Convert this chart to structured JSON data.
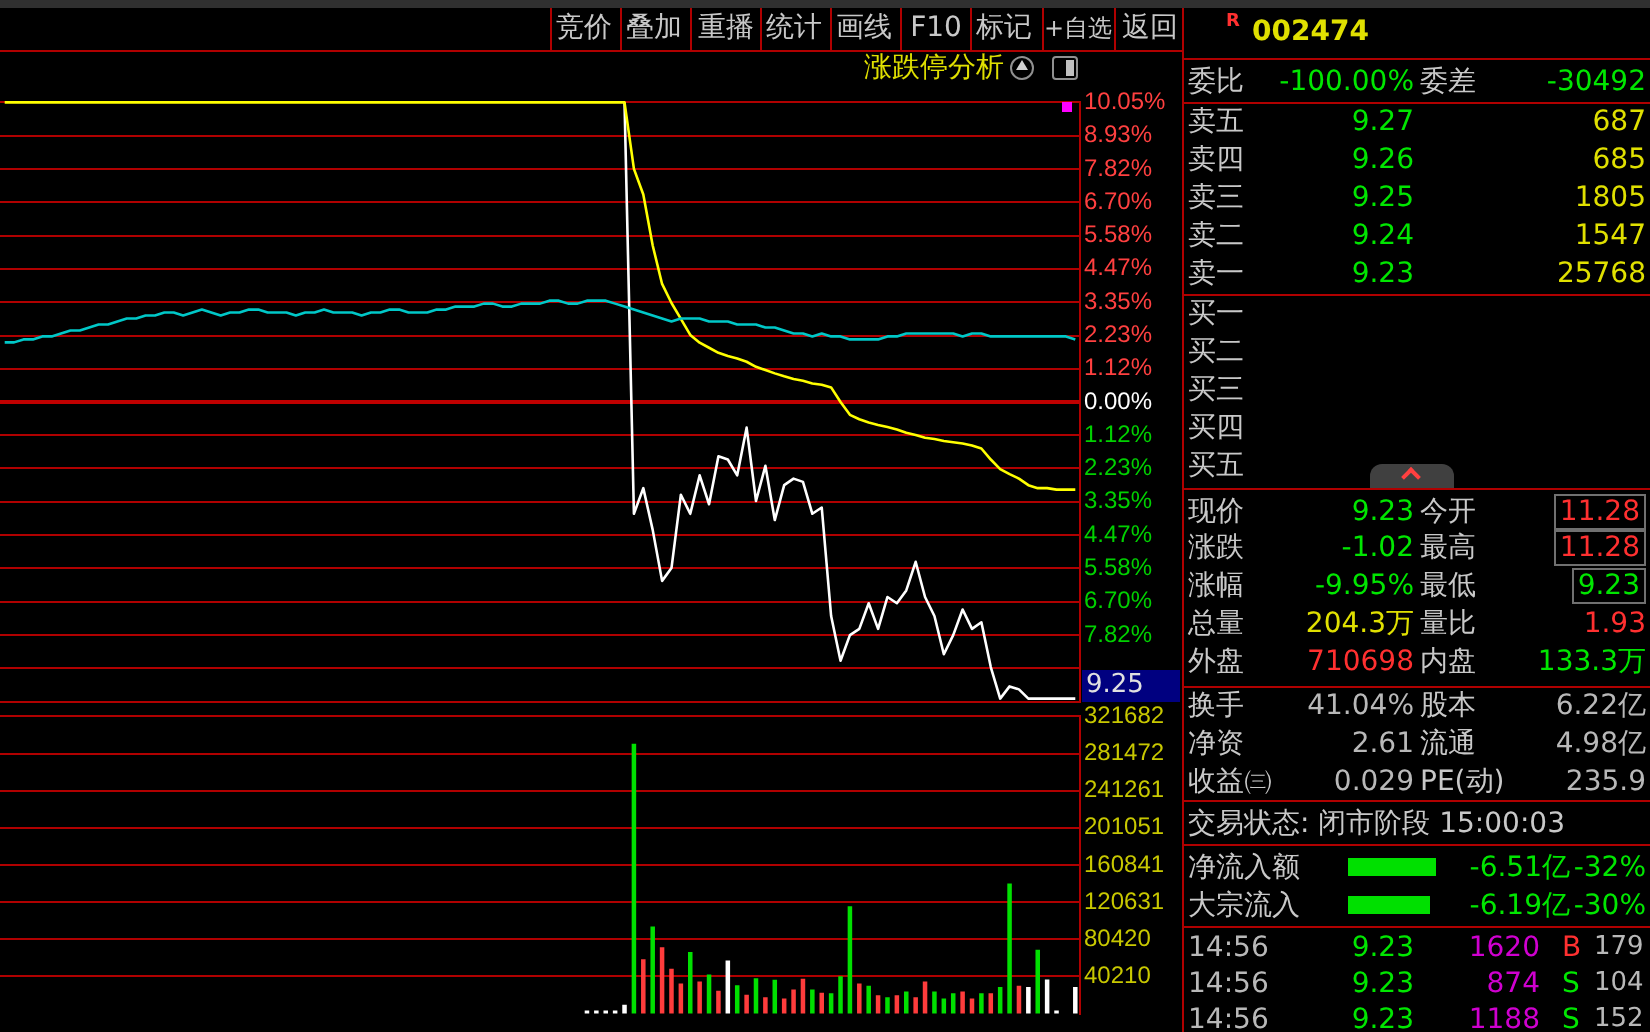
{
  "chart_data": [
    {
      "type": "line",
      "categories": [
        null,
        null,
        null,
        null,
        null,
        null,
        null,
        null,
        null,
        null,
        null,
        null,
        null,
        null,
        null,
        null,
        null,
        null,
        null,
        null,
        null,
        null,
        null,
        null,
        null,
        null,
        null,
        null,
        null,
        null,
        null,
        null,
        null,
        null,
        null,
        null,
        null,
        null,
        null,
        null,
        null,
        null,
        null,
        null,
        null,
        null,
        null,
        null,
        null,
        null,
        null,
        null,
        null,
        null,
        null,
        null,
        null,
        null,
        null,
        null,
        null,
        null,
        null,
        null,
        null,
        null,
        null,
        null,
        null,
        null,
        null,
        null,
        null,
        null,
        null,
        null,
        null,
        null,
        null,
        null,
        null,
        null,
        null,
        null,
        null,
        null,
        null,
        null,
        null,
        null,
        null,
        null,
        null,
        null,
        null,
        null,
        null,
        null,
        null,
        null,
        null,
        null,
        null,
        null,
        null,
        null,
        null,
        null,
        null,
        null,
        null,
        null,
        null,
        null,
        null
      ],
      "ylim": [
        -10.05,
        10.05
      ],
      "yticks": [
        {
          "value": 10.05,
          "label": "10.05%"
        },
        {
          "value": 8.93,
          "label": "8.93%"
        },
        {
          "value": 7.82,
          "label": "7.82%"
        },
        {
          "value": 6.7,
          "label": "6.70%"
        },
        {
          "value": 5.58,
          "label": "5.58%"
        },
        {
          "value": 4.47,
          "label": "4.47%"
        },
        {
          "value": 3.35,
          "label": "3.35%"
        },
        {
          "value": 2.23,
          "label": "2.23%"
        },
        {
          "value": 1.12,
          "label": "1.12%"
        },
        {
          "value": 0,
          "label": "0.00%"
        },
        {
          "value": -1.12,
          "label": "1.12%"
        },
        {
          "value": -2.23,
          "label": "2.23%"
        },
        {
          "value": -3.35,
          "label": "3.35%"
        },
        {
          "value": -4.47,
          "label": "4.47%"
        },
        {
          "value": -5.58,
          "label": "5.58%"
        },
        {
          "value": -6.7,
          "label": "6.70%"
        },
        {
          "value": -7.82,
          "label": "7.82%"
        },
        {
          "value": -8.93,
          "label": null
        },
        {
          "value": -10.05,
          "label": null
        }
      ],
      "grid": "y",
      "tick_labels": "y",
      "series": [
        {
          "color": "#00c8c8",
          "values": [
            2.0,
            2.0,
            2.1,
            2.1,
            2.2,
            2.2,
            2.3,
            2.4,
            2.4,
            2.5,
            2.6,
            2.6,
            2.7,
            2.8,
            2.8,
            2.9,
            2.9,
            3.0,
            3.0,
            2.9,
            3.0,
            3.1,
            3.0,
            2.9,
            3.0,
            3.0,
            3.1,
            3.1,
            3.0,
            3.0,
            3.0,
            2.9,
            3.0,
            3.0,
            3.1,
            3.0,
            3.0,
            3.0,
            2.9,
            3.0,
            3.0,
            3.1,
            3.1,
            3.0,
            3.0,
            3.0,
            3.1,
            3.1,
            3.2,
            3.2,
            3.2,
            3.3,
            3.3,
            3.2,
            3.2,
            3.3,
            3.3,
            3.3,
            3.4,
            3.4,
            3.3,
            3.3,
            3.4,
            3.4,
            3.4,
            3.3,
            3.2,
            3.1,
            3.0,
            2.9,
            2.8,
            2.7,
            2.8,
            2.8,
            2.8,
            2.7,
            2.7,
            2.7,
            2.6,
            2.6,
            2.6,
            2.5,
            2.5,
            2.4,
            2.3,
            2.3,
            2.2,
            2.3,
            2.2,
            2.2,
            2.1,
            2.1,
            2.1,
            2.1,
            2.2,
            2.2,
            2.3,
            2.3,
            2.3,
            2.3,
            2.3,
            2.3,
            2.2,
            2.3,
            2.3,
            2.2,
            2.2,
            2.2,
            2.2,
            2.2,
            2.2,
            2.2,
            2.2,
            2.2,
            2.1
          ]
        },
        {
          "color": "#ffff00",
          "values": [
            10.05,
            10.05,
            10.05,
            10.05,
            10.05,
            10.05,
            10.05,
            10.05,
            10.05,
            10.05,
            10.05,
            10.05,
            10.05,
            10.05,
            10.05,
            10.05,
            10.05,
            10.05,
            10.05,
            10.05,
            10.05,
            10.05,
            10.05,
            10.05,
            10.05,
            10.05,
            10.05,
            10.05,
            10.05,
            10.05,
            10.05,
            10.05,
            10.05,
            10.05,
            10.05,
            10.05,
            10.05,
            10.05,
            10.05,
            10.05,
            10.05,
            10.05,
            10.05,
            10.05,
            10.05,
            10.05,
            10.05,
            10.05,
            10.05,
            10.05,
            10.05,
            10.05,
            10.05,
            10.05,
            10.05,
            10.05,
            10.05,
            10.05,
            10.05,
            10.05,
            10.05,
            10.05,
            10.05,
            10.05,
            10.05,
            10.05,
            10.05,
            7.82,
            6.96,
            5.25,
            3.96,
            3.32,
            2.79,
            2.25,
            1.99,
            1.82,
            1.65,
            1.54,
            1.46,
            1.35,
            1.18,
            1.07,
            0.96,
            0.86,
            0.77,
            0.71,
            0.62,
            0.58,
            0.49,
            0,
            -0.43,
            -0.58,
            -0.69,
            -0.77,
            -0.84,
            -0.92,
            -1.03,
            -1.11,
            -1.2,
            -1.24,
            -1.31,
            -1.35,
            -1.39,
            -1.46,
            -1.56,
            -1.93,
            -2.25,
            -2.42,
            -2.57,
            -2.79,
            -2.89,
            -2.89,
            -2.94,
            -2.94,
            -2.94
          ]
        },
        {
          "color": "#ffffff",
          "values": [
            null,
            null,
            null,
            null,
            null,
            null,
            null,
            null,
            null,
            null,
            null,
            null,
            null,
            null,
            null,
            null,
            null,
            null,
            null,
            null,
            null,
            null,
            null,
            null,
            null,
            null,
            null,
            null,
            null,
            null,
            null,
            null,
            null,
            null,
            null,
            null,
            null,
            null,
            null,
            null,
            null,
            null,
            null,
            null,
            null,
            null,
            null,
            null,
            null,
            null,
            null,
            null,
            null,
            null,
            null,
            null,
            null,
            null,
            null,
            null,
            null,
            null,
            null,
            null,
            null,
            null,
            10.05,
            -3.75,
            -2.89,
            -4.29,
            -6.0,
            -5.57,
            -3.11,
            -3.75,
            -2.46,
            -3.43,
            -1.82,
            -1.93,
            -2.46,
            -0.86,
            -3.32,
            -2.14,
            -3.96,
            -2.79,
            -2.57,
            -2.68,
            -3.75,
            -3.54,
            -7.18,
            -8.68,
            -7.82,
            -7.61,
            -6.75,
            -7.61,
            -6.54,
            -6.75,
            -6.32,
            -5.36,
            -6.54,
            -7.18,
            -8.46,
            -7.82,
            -6.96,
            -7.61,
            -7.39,
            -8.89,
            -9.95,
            -9.54,
            -9.64,
            -9.95,
            -9.95,
            -9.95,
            -9.95,
            -9.95,
            -9.95
          ]
        }
      ],
      "ref_lines": [
        {
          "axis": "y",
          "value": 0,
          "color": "#c00000"
        }
      ],
      "annotations": [
        "9.25",
        "竞价",
        "叠加",
        "重播",
        "统计",
        "画线",
        "F10",
        "标记",
        "+自选",
        "返回",
        "涨跌停分析",
        "R",
        "002474",
        "委比",
        "-100.00%",
        "委差",
        "-30492",
        "卖五",
        "9.27",
        "687",
        "卖四",
        "9.26",
        "685",
        "卖三",
        "9.25",
        "1805",
        "卖二",
        "9.24",
        "1547",
        "卖一",
        "9.23",
        "25768",
        "买一",
        "买二",
        "买三",
        "买四",
        "买五",
        "现价",
        "9.23",
        "今开",
        "11.28",
        "涨跌",
        "-1.02",
        "最高",
        "11.28",
        "涨幅",
        "-9.95%",
        "最低",
        "9.23",
        "总量",
        "204.3万",
        "量比",
        "1.93",
        "外盘",
        "710698",
        "内盘",
        "133.3万",
        "换手",
        "41.04%",
        "股本",
        "6.22亿",
        "净资",
        "2.61",
        "流通",
        "4.98亿",
        "收益㈢",
        "0.029",
        "PE(动)",
        "235.9",
        "交易状态: 闭市阶段 15:00:03",
        "净流入额",
        "-6.51亿",
        "-32%",
        "大宗流入",
        "-6.19亿",
        "-30%",
        "14:56",
        "9.23",
        "1620",
        "B",
        "179",
        "14:56",
        "9.23",
        "874",
        "S",
        "104",
        "14:56",
        "9.23",
        "1188",
        "S",
        "152"
      ]
    },
    {
      "type": "bar",
      "categories": [
        null,
        null,
        null,
        null,
        null,
        null,
        null,
        null,
        null,
        null,
        null,
        null,
        null,
        null,
        null,
        null,
        null,
        null,
        null,
        null,
        null,
        null,
        null,
        null,
        null,
        null,
        null,
        null,
        null,
        null,
        null,
        null,
        null,
        null,
        null,
        null,
        null,
        null,
        null,
        null,
        null,
        null,
        null,
        null,
        null,
        null,
        null,
        null,
        null,
        null,
        null,
        null,
        null,
        null,
        null,
        null,
        null,
        null,
        null,
        null,
        null,
        null,
        null,
        null,
        null,
        null,
        null,
        null,
        null,
        null,
        null,
        null,
        null,
        null,
        null,
        null,
        null,
        null,
        null,
        null,
        null,
        null,
        null,
        null,
        null,
        null,
        null,
        null,
        null,
        null,
        null,
        null,
        null,
        null,
        null,
        null,
        null,
        null,
        null,
        null,
        null,
        null,
        null,
        null,
        null,
        null,
        null,
        null,
        null,
        null,
        null,
        null,
        null,
        null,
        null
      ],
      "ylim": [
        0,
        321682
      ],
      "yticks": [
        40210,
        80420,
        120631,
        160841,
        201051,
        241261,
        281472,
        321682
      ],
      "grid": "y",
      "tick_labels": "y",
      "values": [
        null,
        null,
        null,
        null,
        null,
        null,
        null,
        null,
        null,
        null,
        null,
        null,
        null,
        null,
        null,
        null,
        null,
        null,
        null,
        null,
        null,
        null,
        null,
        null,
        null,
        null,
        null,
        null,
        null,
        null,
        null,
        null,
        null,
        null,
        null,
        null,
        null,
        null,
        null,
        null,
        null,
        null,
        null,
        null,
        null,
        null,
        null,
        null,
        null,
        null,
        null,
        null,
        null,
        null,
        null,
        null,
        null,
        null,
        null,
        null,
        null,
        null,
        2700,
        2700,
        2700,
        2700,
        8900,
        291500,
        58000,
        93500,
        71000,
        47800,
        32000,
        66000,
        34000,
        41600,
        23900,
        56700,
        30000,
        19800,
        37500,
        17000,
        36000,
        15700,
        25300,
        36900,
        25300,
        21800,
        21200,
        39600,
        115400,
        32000,
        29400,
        19100,
        17000,
        19100,
        23200,
        17000,
        34000,
        23200,
        15700,
        21200,
        23200,
        15700,
        21200,
        21200,
        28000,
        140000,
        29400,
        28000,
        68300,
        36200,
        2700,
        null,
        28000
      ],
      "colors": [
        null,
        null,
        null,
        null,
        null,
        null,
        null,
        null,
        null,
        null,
        null,
        null,
        null,
        null,
        null,
        null,
        null,
        null,
        null,
        null,
        null,
        null,
        null,
        null,
        null,
        null,
        null,
        null,
        null,
        null,
        null,
        null,
        null,
        null,
        null,
        null,
        null,
        null,
        null,
        null,
        null,
        null,
        null,
        null,
        null,
        null,
        null,
        null,
        null,
        null,
        null,
        null,
        null,
        null,
        null,
        null,
        null,
        null,
        null,
        null,
        null,
        null,
        "#ffffff",
        "#ffffff",
        "#ffffff",
        "#ffffff",
        "#ffffff",
        "#00e000",
        "#ff3c3c",
        "#00e000",
        "#ff3c3c",
        "#ff3c3c",
        "#ff3c3c",
        "#00e000",
        "#ff3c3c",
        "#00e000",
        "#ff3c3c",
        "#ffffff",
        "#00e000",
        "#ff3c3c",
        "#00e000",
        "#ff3c3c",
        "#00e000",
        "#ff3c3c",
        "#ff3c3c",
        "#ff3c3c",
        "#00e000",
        "#ff3c3c",
        "#00e000",
        "#00e000",
        "#00e000",
        "#ff3c3c",
        "#00e000",
        "#ff3c3c",
        "#00e000",
        "#ff3c3c",
        "#00e000",
        "#ff3c3c",
        "#ff3c3c",
        "#00e000",
        "#00e000",
        "#00e000",
        "#ff3c3c",
        "#ff3c3c",
        "#00e000",
        "#ff3c3c",
        "#00e000",
        "#00e000",
        "#ff3c3c",
        "#ffffff",
        "#00e000",
        "#ffffff",
        "#ffffff",
        null,
        "#ffffff"
      ]
    }
  ]
}
